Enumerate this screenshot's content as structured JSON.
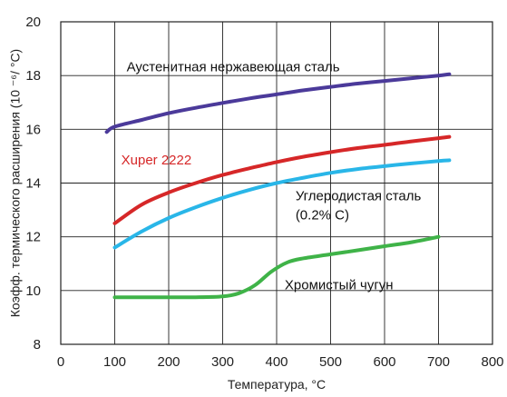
{
  "chart_data": {
    "type": "line",
    "xlabel": "Температура, °C",
    "ylabel": "Коэфф. термического расширения (10 ⁻⁶/ °C)",
    "xlim": [
      0,
      800
    ],
    "ylim": [
      8,
      20
    ],
    "x_ticks": [
      "0",
      "100",
      "200",
      "300",
      "400",
      "500",
      "600",
      "700",
      "800"
    ],
    "y_ticks": [
      "8",
      "10",
      "12",
      "14",
      "16",
      "18",
      "20"
    ],
    "grid": true,
    "series": [
      {
        "name": "Аустенитная нержавеющая сталь",
        "color": "#4b3a9a",
        "x": [
          85,
          100,
          150,
          200,
          250,
          300,
          350,
          400,
          450,
          500,
          550,
          600,
          650,
          700,
          720
        ],
        "y": [
          15.9,
          16.1,
          16.35,
          16.6,
          16.8,
          16.98,
          17.15,
          17.3,
          17.45,
          17.58,
          17.7,
          17.8,
          17.9,
          18.0,
          18.05
        ]
      },
      {
        "name": "Xuper 2222",
        "color": "#d62728",
        "x": [
          100,
          150,
          200,
          250,
          300,
          350,
          400,
          450,
          500,
          550,
          600,
          650,
          700,
          720
        ],
        "y": [
          12.5,
          13.2,
          13.65,
          14.0,
          14.3,
          14.55,
          14.78,
          14.98,
          15.15,
          15.3,
          15.42,
          15.55,
          15.67,
          15.72
        ]
      },
      {
        "name": "Углеродистая сталь (0.2% C)",
        "color": "#29b6e8",
        "x": [
          100,
          150,
          200,
          250,
          300,
          350,
          400,
          450,
          500,
          550,
          600,
          650,
          700,
          720
        ],
        "y": [
          11.6,
          12.2,
          12.7,
          13.1,
          13.45,
          13.75,
          14.0,
          14.2,
          14.38,
          14.52,
          14.63,
          14.73,
          14.82,
          14.85
        ]
      },
      {
        "name": "Хромистый чугун",
        "color": "#3fb348",
        "x": [
          100,
          150,
          200,
          250,
          300,
          330,
          360,
          390,
          420,
          450,
          500,
          550,
          600,
          650,
          700
        ],
        "y": [
          9.75,
          9.75,
          9.75,
          9.75,
          9.78,
          9.9,
          10.2,
          10.7,
          11.05,
          11.2,
          11.35,
          11.5,
          11.65,
          11.8,
          12.0
        ]
      }
    ],
    "labels": [
      {
        "lines": [
          "Аустенитная нержавеющая сталь"
        ],
        "color": "#111111",
        "x": 122,
        "y": 18.15
      },
      {
        "lines": [
          "Xuper 2222"
        ],
        "color": "#d62728",
        "x": 112,
        "y": 14.7
      },
      {
        "lines": [
          "Углеродистая сталь",
          "(0.2% C)"
        ],
        "color": "#111111",
        "x": 435,
        "y": 13.35,
        "align": "left-wrap"
      },
      {
        "lines": [
          "Хромистый чугун"
        ],
        "color": "#111111",
        "x": 415,
        "y": 10.05
      }
    ]
  }
}
